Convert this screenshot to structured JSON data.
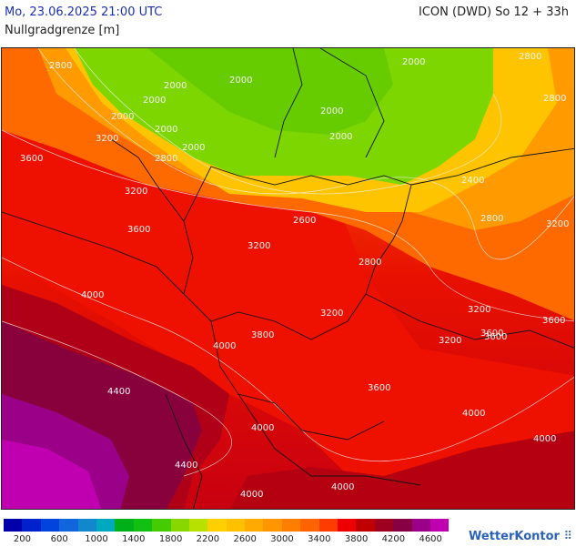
{
  "header": {
    "datetime": "Mo, 23.06.2025 21:00 UTC",
    "parameter": "Nullgradgrenze [m]",
    "model": "ICON (DWD) So 12 + 33h"
  },
  "map": {
    "contour_labels": [
      "2800",
      "2000",
      "2000",
      "2000",
      "2000",
      "2000",
      "2800",
      "2000",
      "3200",
      "2800",
      "2000",
      "2000",
      "2000",
      "3600",
      "2800",
      "3200",
      "2400",
      "2800",
      "3200",
      "2600",
      "3600",
      "3200",
      "2800",
      "4000",
      "3200",
      "3200",
      "3800",
      "3600",
      "4000",
      "3600",
      "3200",
      "3600",
      "4400",
      "4000",
      "3600",
      "4000",
      "4000",
      "4400",
      "4000",
      "4000"
    ]
  },
  "legend": {
    "colors": [
      "#0000aa",
      "#0022cc",
      "#0044dd",
      "#1166dd",
      "#1188cc",
      "#00a8c0",
      "#00b018",
      "#11c011",
      "#44cc00",
      "#88d800",
      "#b8e000",
      "#ffd000",
      "#ffc000",
      "#ffaa00",
      "#ff9600",
      "#ff7d00",
      "#ff6400",
      "#ff3c00",
      "#ee0000",
      "#c00000",
      "#a00020",
      "#880044",
      "#9a0088",
      "#c000b0"
    ],
    "ticks": [
      "200",
      "600",
      "1000",
      "1400",
      "1800",
      "2200",
      "2600",
      "3000",
      "3400",
      "3800",
      "4200",
      "4600"
    ]
  },
  "brand": {
    "name": "WetterKontor",
    "dots": "⠿"
  }
}
